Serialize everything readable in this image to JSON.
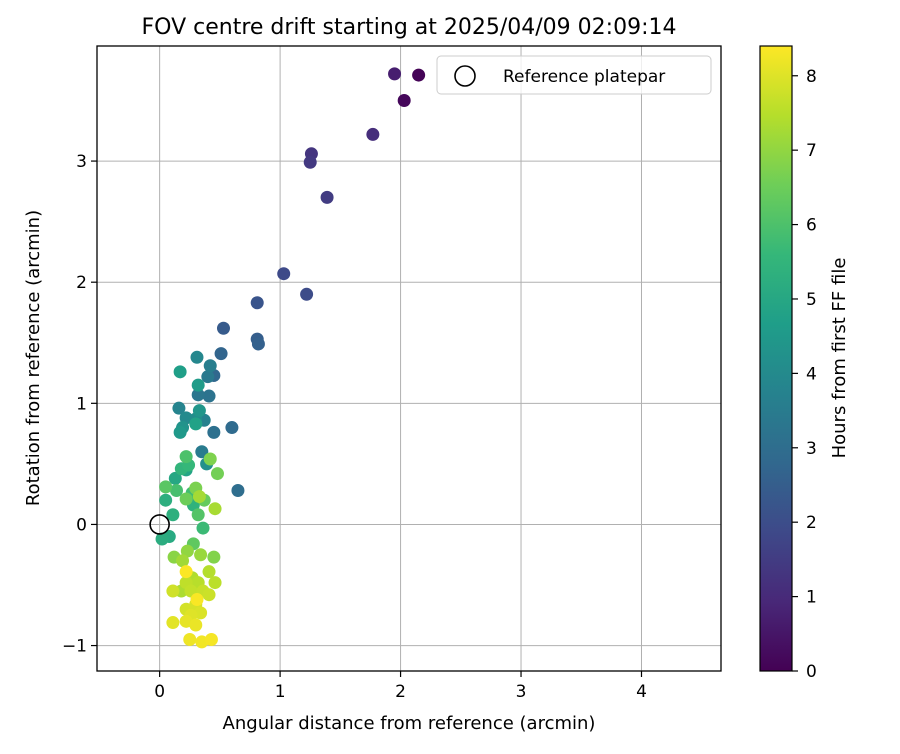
{
  "chart_data": {
    "type": "scatter",
    "title": "FOV centre drift starting at 2025/04/09 02:09:14",
    "xlabel": "Angular distance from reference (arcmin)",
    "ylabel": "Rotation from reference (arcmin)",
    "xlim": [
      -0.52,
      4.66
    ],
    "ylim": [
      -1.21,
      3.95
    ],
    "xticks": [
      0,
      1,
      2,
      3,
      4
    ],
    "yticks": [
      -1,
      0,
      1,
      2,
      3
    ],
    "xtick_labels": [
      "0",
      "1",
      "2",
      "3",
      "4"
    ],
    "ytick_labels": [
      "−1",
      "0",
      "1",
      "2",
      "3"
    ],
    "grid": true,
    "legend": {
      "placement": "top-right",
      "entries": [
        {
          "label": "Reference platepar",
          "marker": "open-circle"
        }
      ]
    },
    "reference_point": {
      "x": 0,
      "y": 0
    },
    "colorbar": {
      "label": "Hours from first FF file",
      "range": [
        0,
        8.4
      ],
      "ticks": [
        0,
        1,
        2,
        3,
        4,
        5,
        6,
        7,
        8
      ],
      "tick_labels": [
        "0",
        "1",
        "2",
        "3",
        "4",
        "5",
        "6",
        "7",
        "8"
      ],
      "colormap": "viridis",
      "colors": [
        "#440154",
        "#482878",
        "#3e4989",
        "#31688e",
        "#26828e",
        "#1f9e89",
        "#35b779",
        "#6ece58",
        "#b5de2b",
        "#fde725"
      ]
    },
    "points": [
      {
        "x": 2.15,
        "y": 3.71,
        "hours": 0.05
      },
      {
        "x": 2.03,
        "y": 3.5,
        "hours": 0.15
      },
      {
        "x": 1.95,
        "y": 3.72,
        "hours": 0.7
      },
      {
        "x": 1.77,
        "y": 3.22,
        "hours": 1.1
      },
      {
        "x": 1.26,
        "y": 3.06,
        "hours": 1.3
      },
      {
        "x": 1.25,
        "y": 2.99,
        "hours": 1.4
      },
      {
        "x": 1.39,
        "y": 2.7,
        "hours": 1.5
      },
      {
        "x": 1.03,
        "y": 2.07,
        "hours": 1.9
      },
      {
        "x": 1.22,
        "y": 1.9,
        "hours": 1.95
      },
      {
        "x": 0.81,
        "y": 1.83,
        "hours": 2.2
      },
      {
        "x": 0.53,
        "y": 1.62,
        "hours": 2.4
      },
      {
        "x": 0.81,
        "y": 1.53,
        "hours": 2.5
      },
      {
        "x": 0.82,
        "y": 1.49,
        "hours": 2.6
      },
      {
        "x": 0.51,
        "y": 1.41,
        "hours": 2.7
      },
      {
        "x": 0.45,
        "y": 1.23,
        "hours": 2.8
      },
      {
        "x": 0.6,
        "y": 0.8,
        "hours": 2.9
      },
      {
        "x": 0.65,
        "y": 0.28,
        "hours": 3.0
      },
      {
        "x": 0.45,
        "y": 0.76,
        "hours": 3.1
      },
      {
        "x": 0.41,
        "y": 1.06,
        "hours": 3.2
      },
      {
        "x": 0.32,
        "y": 1.07,
        "hours": 3.3
      },
      {
        "x": 0.4,
        "y": 1.22,
        "hours": 3.4
      },
      {
        "x": 0.35,
        "y": 0.6,
        "hours": 3.5
      },
      {
        "x": 0.42,
        "y": 1.31,
        "hours": 3.6
      },
      {
        "x": 0.37,
        "y": 0.86,
        "hours": 3.7
      },
      {
        "x": 0.16,
        "y": 0.96,
        "hours": 3.8
      },
      {
        "x": 0.31,
        "y": 1.38,
        "hours": 3.9
      },
      {
        "x": 0.22,
        "y": 0.88,
        "hours": 4.0
      },
      {
        "x": 0.3,
        "y": 0.87,
        "hours": 4.1
      },
      {
        "x": 0.39,
        "y": 0.5,
        "hours": 4.2
      },
      {
        "x": 0.19,
        "y": 0.8,
        "hours": 4.3
      },
      {
        "x": 0.33,
        "y": 0.94,
        "hours": 4.4
      },
      {
        "x": 0.17,
        "y": 0.76,
        "hours": 4.5
      },
      {
        "x": 0.32,
        "y": 1.15,
        "hours": 4.6
      },
      {
        "x": 0.17,
        "y": 1.26,
        "hours": 4.7
      },
      {
        "x": 0.3,
        "y": 0.83,
        "hours": 4.8
      },
      {
        "x": 0.22,
        "y": 0.45,
        "hours": 4.9
      },
      {
        "x": 0.13,
        "y": 0.38,
        "hours": 5.0
      },
      {
        "x": 0.08,
        "y": -0.1,
        "hours": 5.1
      },
      {
        "x": 0.02,
        "y": -0.12,
        "hours": 5.2
      },
      {
        "x": 0.05,
        "y": 0.2,
        "hours": 5.25
      },
      {
        "x": 0.11,
        "y": 0.08,
        "hours": 5.3
      },
      {
        "x": 0.28,
        "y": 0.16,
        "hours": 5.4
      },
      {
        "x": 0.18,
        "y": 0.46,
        "hours": 5.5
      },
      {
        "x": 0.24,
        "y": 0.49,
        "hours": 5.6
      },
      {
        "x": 0.36,
        "y": -0.03,
        "hours": 5.7
      },
      {
        "x": 0.27,
        "y": 0.26,
        "hours": 5.8
      },
      {
        "x": 0.14,
        "y": 0.28,
        "hours": 5.9
      },
      {
        "x": 0.22,
        "y": 0.56,
        "hours": 6.0
      },
      {
        "x": 0.32,
        "y": 0.08,
        "hours": 6.1
      },
      {
        "x": 0.05,
        "y": 0.31,
        "hours": 6.2
      },
      {
        "x": 0.28,
        "y": -0.16,
        "hours": 6.3
      },
      {
        "x": 0.37,
        "y": 0.2,
        "hours": 6.4
      },
      {
        "x": 0.22,
        "y": 0.21,
        "hours": 6.5
      },
      {
        "x": 0.48,
        "y": 0.42,
        "hours": 6.6
      },
      {
        "x": 0.3,
        "y": 0.3,
        "hours": 6.7
      },
      {
        "x": 0.42,
        "y": 0.54,
        "hours": 6.75
      },
      {
        "x": 0.45,
        "y": -0.27,
        "hours": 6.8
      },
      {
        "x": 0.12,
        "y": -0.27,
        "hours": 6.9
      },
      {
        "x": 0.23,
        "y": -0.22,
        "hours": 7.0
      },
      {
        "x": 0.34,
        "y": -0.25,
        "hours": 7.1
      },
      {
        "x": 0.19,
        "y": -0.3,
        "hours": 7.2
      },
      {
        "x": 0.33,
        "y": 0.23,
        "hours": 7.25
      },
      {
        "x": 0.46,
        "y": 0.13,
        "hours": 7.3
      },
      {
        "x": 0.18,
        "y": -0.55,
        "hours": 7.35
      },
      {
        "x": 0.27,
        "y": -0.44,
        "hours": 7.4
      },
      {
        "x": 0.41,
        "y": -0.39,
        "hours": 7.45
      },
      {
        "x": 0.32,
        "y": -0.48,
        "hours": 7.5
      },
      {
        "x": 0.46,
        "y": -0.48,
        "hours": 7.55
      },
      {
        "x": 0.22,
        "y": -0.48,
        "hours": 7.6
      },
      {
        "x": 0.26,
        "y": -0.55,
        "hours": 7.65
      },
      {
        "x": 0.36,
        "y": -0.55,
        "hours": 7.7
      },
      {
        "x": 0.41,
        "y": -0.58,
        "hours": 7.75
      },
      {
        "x": 0.11,
        "y": -0.55,
        "hours": 7.8
      },
      {
        "x": 0.22,
        "y": -0.7,
        "hours": 7.85
      },
      {
        "x": 0.3,
        "y": -0.66,
        "hours": 7.9
      },
      {
        "x": 0.34,
        "y": -0.73,
        "hours": 7.95
      },
      {
        "x": 0.26,
        "y": -0.75,
        "hours": 8.0
      },
      {
        "x": 0.11,
        "y": -0.81,
        "hours": 8.05
      },
      {
        "x": 0.22,
        "y": -0.8,
        "hours": 8.1
      },
      {
        "x": 0.3,
        "y": -0.83,
        "hours": 8.15
      },
      {
        "x": 0.25,
        "y": -0.95,
        "hours": 8.2
      },
      {
        "x": 0.35,
        "y": -0.97,
        "hours": 8.25
      },
      {
        "x": 0.43,
        "y": -0.95,
        "hours": 8.3
      },
      {
        "x": 0.31,
        "y": -0.62,
        "hours": 8.35
      },
      {
        "x": 0.22,
        "y": -0.39,
        "hours": 8.38
      }
    ]
  }
}
